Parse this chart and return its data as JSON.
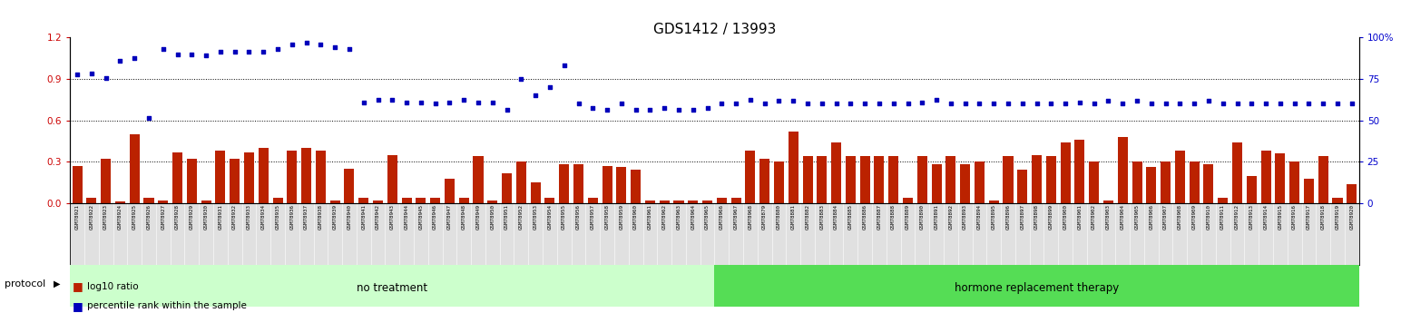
{
  "title": "GDS1412 / 13993",
  "samples": [
    "GSM78921",
    "GSM78922",
    "GSM78923",
    "GSM78924",
    "GSM78925",
    "GSM78926",
    "GSM78927",
    "GSM78928",
    "GSM78929",
    "GSM78930",
    "GSM78931",
    "GSM78932",
    "GSM78933",
    "GSM78934",
    "GSM78935",
    "GSM78936",
    "GSM78937",
    "GSM78938",
    "GSM78939",
    "GSM78940",
    "GSM78941",
    "GSM78942",
    "GSM78943",
    "GSM78944",
    "GSM78945",
    "GSM78946",
    "GSM78947",
    "GSM78948",
    "GSM78949",
    "GSM78950",
    "GSM78951",
    "GSM78952",
    "GSM78953",
    "GSM78954",
    "GSM78955",
    "GSM78956",
    "GSM78957",
    "GSM78958",
    "GSM78959",
    "GSM78960",
    "GSM78961",
    "GSM78962",
    "GSM78963",
    "GSM78964",
    "GSM78965",
    "GSM78966",
    "GSM78967",
    "GSM78968",
    "GSM78879",
    "GSM78880",
    "GSM78881",
    "GSM78882",
    "GSM78883",
    "GSM78884",
    "GSM78885",
    "GSM78886",
    "GSM78887",
    "GSM78888",
    "GSM78889",
    "GSM78890",
    "GSM78891",
    "GSM78892",
    "GSM78893",
    "GSM78894",
    "GSM78895",
    "GSM78896",
    "GSM78897",
    "GSM78898",
    "GSM78899",
    "GSM78900",
    "GSM78901",
    "GSM78902",
    "GSM78903",
    "GSM78904",
    "GSM78905",
    "GSM78906",
    "GSM78907",
    "GSM78908",
    "GSM78909",
    "GSM78910",
    "GSM78911",
    "GSM78912",
    "GSM78913",
    "GSM78914",
    "GSM78915",
    "GSM78916",
    "GSM78917",
    "GSM78918",
    "GSM78919",
    "GSM78920"
  ],
  "log10_ratio": [
    0.27,
    0.04,
    0.32,
    0.01,
    0.5,
    0.04,
    0.02,
    0.37,
    0.32,
    0.02,
    0.38,
    0.32,
    0.37,
    0.4,
    0.04,
    0.38,
    0.4,
    0.38,
    0.02,
    0.25,
    0.04,
    0.02,
    0.35,
    0.04,
    0.04,
    0.04,
    0.18,
    0.04,
    0.34,
    0.02,
    0.22,
    0.3,
    0.15,
    0.04,
    0.28,
    0.28,
    0.04,
    0.27,
    0.26,
    0.24,
    0.02,
    0.02,
    0.02,
    0.02,
    0.02,
    0.04,
    0.04,
    0.38,
    0.32,
    0.3,
    0.52,
    0.34,
    0.34,
    0.44,
    0.34,
    0.34,
    0.34,
    0.34,
    0.04,
    0.34,
    0.28,
    0.34,
    0.28,
    0.3,
    0.02,
    0.34,
    0.24,
    0.35,
    0.34,
    0.44,
    0.46,
    0.3,
    0.02,
    0.48,
    0.3,
    0.26,
    0.3,
    0.38,
    0.3,
    0.28,
    0.04,
    0.44,
    0.2,
    0.38,
    0.36,
    0.3,
    0.18,
    0.34,
    0.04,
    0.14
  ],
  "percentile_rank": [
    0.93,
    0.94,
    0.91,
    1.03,
    1.05,
    0.62,
    1.12,
    1.08,
    1.08,
    1.07,
    1.1,
    1.1,
    1.1,
    1.1,
    1.12,
    1.15,
    1.16,
    1.15,
    1.13,
    1.12,
    0.73,
    0.75,
    0.75,
    0.73,
    0.73,
    0.72,
    0.73,
    0.75,
    0.73,
    0.73,
    0.68,
    0.9,
    0.78,
    0.84,
    1.0,
    0.72,
    0.69,
    0.68,
    0.72,
    0.68,
    0.68,
    0.69,
    0.68,
    0.68,
    0.69,
    0.72,
    0.72,
    0.75,
    0.72,
    0.74,
    0.74,
    0.72,
    0.72,
    0.72,
    0.72,
    0.72,
    0.72,
    0.72,
    0.72,
    0.73,
    0.75,
    0.72,
    0.72,
    0.72,
    0.72,
    0.72,
    0.72,
    0.72,
    0.72,
    0.72,
    0.73,
    0.72,
    0.74,
    0.72,
    0.74,
    0.72,
    0.72,
    0.72,
    0.72,
    0.74,
    0.72,
    0.72,
    0.72,
    0.72,
    0.72,
    0.72,
    0.72,
    0.72,
    0.72,
    0.72
  ],
  "no_treatment_count": 45,
  "bar_color": "#bb2200",
  "dot_color": "#0000bb",
  "ylim_left": [
    0,
    1.2
  ],
  "ylim_right": [
    0,
    100
  ],
  "yticks_left": [
    0.0,
    0.3,
    0.6,
    0.9,
    1.2
  ],
  "yticks_right": [
    0,
    25,
    50,
    75,
    100
  ],
  "protocol_label": "protocol",
  "no_treatment_label": "no treatment",
  "hrt_label": "hormone replacement therapy",
  "legend_ratio_label": "log10 ratio",
  "legend_pct_label": "percentile rank within the sample",
  "bg_color": "#ffffff",
  "plot_bg_color": "#ffffff",
  "tick_label_color": "#cc0000",
  "right_tick_color": "#0000cc",
  "no_treatment_bg": "#ccffcc",
  "hrt_bg": "#55dd55"
}
